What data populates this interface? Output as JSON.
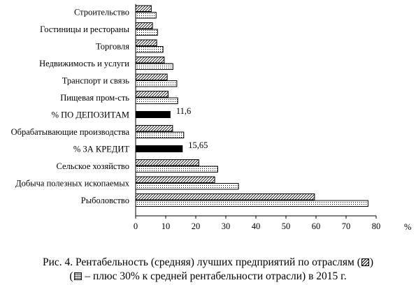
{
  "chart_data": {
    "type": "bar",
    "orientation": "horizontal",
    "categories": [
      "Строительство",
      "Гостиницы и рестораны",
      "Торговля",
      "Недвижимость и услуги",
      "Транспорт и связь",
      "Пищевая пром-сть",
      "% ПО ДЕПОЗИТАМ",
      "Обрабатывающие производства",
      "% ЗА КРЕДИТ",
      "Сельское хозяйство",
      "Добыча полезных ископаемых",
      "Рыболовство"
    ],
    "series": [
      {
        "pattern": "hatched",
        "values": [
          5.2,
          5.6,
          7.0,
          9.5,
          10.5,
          10.8,
          null,
          12.3,
          null,
          21.0,
          26.3,
          59.5
        ]
      },
      {
        "pattern": "dotted",
        "values": [
          6.8,
          7.3,
          9.1,
          12.4,
          13.7,
          14.0,
          null,
          16.0,
          null,
          27.3,
          34.2,
          77.3
        ]
      },
      {
        "pattern": "solid",
        "values": [
          null,
          null,
          null,
          null,
          null,
          null,
          11.6,
          null,
          15.65,
          null,
          null,
          null
        ]
      }
    ],
    "data_labels": {
      "% ПО ДЕПОЗИТАМ": "11,6",
      "% ЗА КРЕДИТ": "15,65"
    },
    "xlim": [
      0,
      80
    ],
    "xticks": [
      0,
      10,
      20,
      30,
      40,
      50,
      60,
      70,
      80
    ],
    "xunit": "%",
    "grid": false
  },
  "caption": {
    "line1_prefix": "Рис. 4. Рентабельность (средняя) лучших предприятий по отраслям (",
    "line1_suffix": ")",
    "line2_prefix": "(",
    "line2_suffix": " – плюс 30% к средней рентабельности отрасли) в 2015 г.",
    "legend_icons": [
      "hatched-swatch-icon",
      "dotted-swatch-icon"
    ]
  }
}
